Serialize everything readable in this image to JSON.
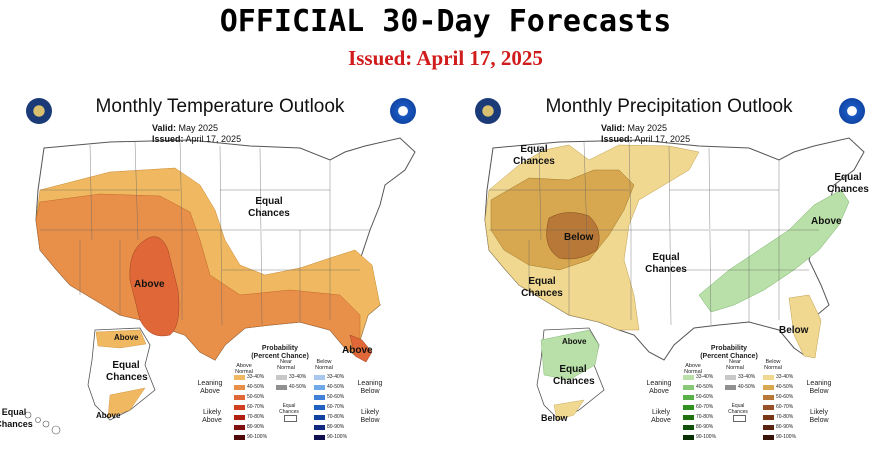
{
  "header": {
    "title": "OFFICIAL 30-Day Forecasts",
    "issued": "Issued: April 17, 2025"
  },
  "temperature": {
    "title": "Monthly Temperature Outlook",
    "valid_label": "Valid:",
    "valid_value": "May 2025",
    "issued_label": "Issued:",
    "issued_value": "April 17, 2025",
    "labels": {
      "equal_chances_main": "Equal Chances",
      "above_main": "Above",
      "above_florida": "Above",
      "above_alaska": "Above",
      "above_alaska_south": "Above",
      "equal_chances_alaska": "Equal Chances",
      "equal_chances_hawaii": "Equal Chances"
    },
    "legend": {
      "title": "Probability (Percent Chance)",
      "col_above": "Above Normal",
      "col_near": "Near Normal",
      "col_below": "Below Normal",
      "leaning_above": "Leaning Above",
      "likely_above": "Likely Above",
      "leaning_below": "Leaning Below",
      "likely_below": "Likely Below",
      "equal_chances": "Equal Chances",
      "above_ranges": [
        "33-40%",
        "40-50%",
        "50-60%",
        "60-70%",
        "70-80%",
        "80-90%",
        "90-100%"
      ],
      "near_ranges": [
        "33-40%",
        "40-50%"
      ],
      "below_ranges": [
        "33-40%",
        "40-50%",
        "50-60%",
        "60-70%",
        "70-80%",
        "80-90%",
        "90-100%"
      ],
      "above_colors": [
        "#f0b860",
        "#e8904a",
        "#e06838",
        "#d04020",
        "#b02010",
        "#801010",
        "#500808"
      ],
      "near_colors": [
        "#c8c8c8",
        "#909090"
      ],
      "below_colors": [
        "#a8c8f0",
        "#70a8e8",
        "#4080d8",
        "#2060c0",
        "#1040a0",
        "#102880",
        "#101050"
      ]
    }
  },
  "precipitation": {
    "title": "Monthly Precipitation Outlook",
    "valid_label": "Valid:",
    "valid_value": "May 2025",
    "issued_label": "Issued:",
    "issued_value": "April 17, 2025",
    "labels": {
      "equal_chances_nw": "Equal Chances",
      "below_main": "Below",
      "equal_chances_sw": "Equal Chances",
      "equal_chances_central": "Equal Chances",
      "equal_chances_ne": "Equal Chances",
      "above_east": "Above",
      "below_florida": "Below",
      "above_alaska": "Above",
      "equal_chances_alaska": "Equal Chances",
      "below_alaska_south": "Below"
    },
    "legend": {
      "title": "Probability (Percent Chance)",
      "col_above": "Above Normal",
      "col_near": "Near Normal",
      "col_below": "Below Normal",
      "leaning_above": "Leaning Above",
      "likely_above": "Likely Above",
      "leaning_below": "Leaning Below",
      "likely_below": "Likely Below",
      "equal_chances": "Equal Chances",
      "above_ranges": [
        "33-40%",
        "40-50%",
        "50-60%",
        "60-70%",
        "70-80%",
        "80-90%",
        "90-100%"
      ],
      "near_ranges": [
        "33-40%",
        "40-50%"
      ],
      "below_ranges": [
        "33-40%",
        "40-50%",
        "50-60%",
        "60-70%",
        "70-80%",
        "80-90%",
        "90-100%"
      ],
      "above_colors": [
        "#b8e0a8",
        "#88c878",
        "#58b048",
        "#309020",
        "#207010",
        "#105008",
        "#083004"
      ],
      "near_colors": [
        "#c8c8c8",
        "#909090"
      ],
      "below_colors": [
        "#f0d890",
        "#d8a850",
        "#b87838",
        "#985028",
        "#783818",
        "#582410",
        "#381408"
      ]
    }
  }
}
